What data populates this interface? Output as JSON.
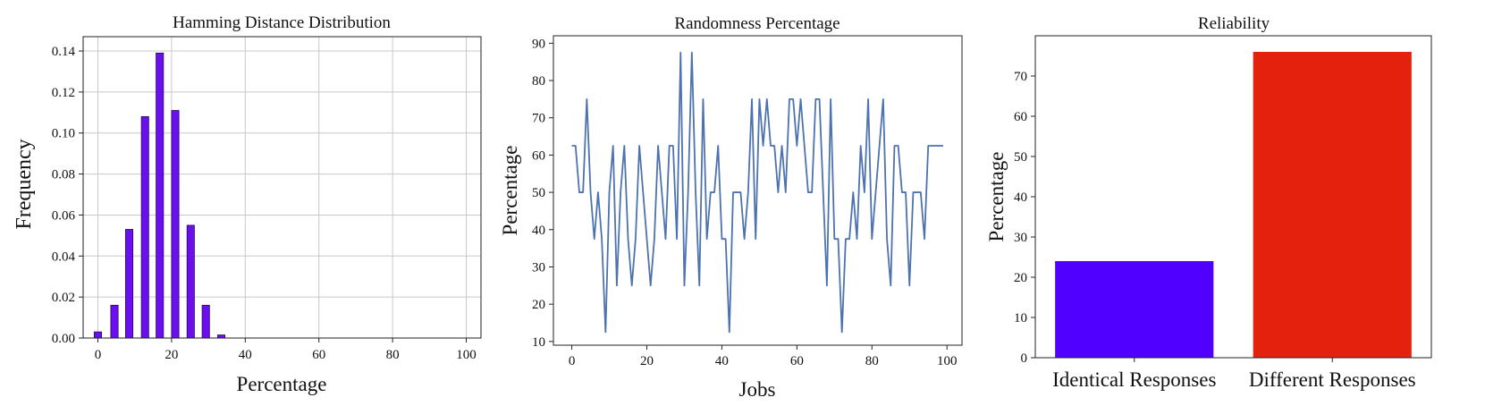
{
  "chart_data": [
    {
      "type": "bar",
      "title": "Hamming Distance Distribution",
      "xlabel": "Percentage",
      "ylabel": "Frequency",
      "xlim": [
        -4,
        104
      ],
      "ylim": [
        0,
        0.147
      ],
      "xticks": [
        0,
        20,
        40,
        60,
        80,
        100
      ],
      "yticks": [
        "0.00",
        "0.02",
        "0.04",
        "0.06",
        "0.08",
        "0.10",
        "0.12",
        "0.14"
      ],
      "grid": true,
      "bar_width": 2,
      "x": [
        0,
        4.5,
        8.5,
        12.8,
        16.8,
        21,
        25.2,
        29.3,
        33.5
      ],
      "values": [
        0.003,
        0.016,
        0.053,
        0.108,
        0.139,
        0.111,
        0.055,
        0.016,
        0.0015
      ],
      "color": "#6a0ff0",
      "edge_color": "#2a0a55"
    },
    {
      "type": "line",
      "title": "Randomness Percentage",
      "xlabel": "Jobs",
      "ylabel": "Percentage",
      "xlim": [
        -4.9,
        104
      ],
      "ylim": [
        9,
        92
      ],
      "xticks": [
        0,
        20,
        40,
        60,
        80,
        100
      ],
      "yticks": [
        10,
        20,
        30,
        40,
        50,
        60,
        70,
        80,
        90
      ],
      "grid": false,
      "color": "#4c72b0",
      "x": [
        0,
        1,
        2,
        3,
        4,
        5,
        6,
        7,
        8,
        9,
        10,
        11,
        12,
        13,
        14,
        15,
        16,
        17,
        18,
        19,
        20,
        21,
        22,
        23,
        24,
        25,
        26,
        27,
        28,
        29,
        30,
        31,
        32,
        33,
        34,
        35,
        36,
        37,
        38,
        39,
        40,
        41,
        42,
        43,
        44,
        45,
        46,
        47,
        48,
        49,
        50,
        51,
        52,
        53,
        54,
        55,
        56,
        57,
        58,
        59,
        60,
        61,
        62,
        63,
        64,
        65,
        66,
        67,
        68,
        69,
        70,
        71,
        72,
        73,
        74,
        75,
        76,
        77,
        78,
        79,
        80,
        81,
        82,
        83,
        84,
        85,
        86,
        87,
        88,
        89,
        90,
        91,
        92,
        93,
        94,
        95,
        96,
        97,
        98,
        99
      ],
      "y": [
        62.5,
        62.5,
        50,
        50,
        75,
        50,
        37.5,
        50,
        37.5,
        12.5,
        50,
        62.5,
        25,
        50,
        62.5,
        37.5,
        25,
        37.5,
        62.5,
        50,
        37.5,
        25,
        37.5,
        62.5,
        50,
        37.5,
        62.5,
        62.5,
        37.5,
        87.5,
        25,
        50,
        87.5,
        50,
        25,
        75,
        37.5,
        50,
        50,
        62.5,
        37.5,
        37.5,
        12.5,
        50,
        50,
        50,
        37.5,
        50,
        75,
        37.5,
        75,
        62.5,
        75,
        62.5,
        62.5,
        50,
        62.5,
        50,
        75,
        75,
        62.5,
        75,
        62.5,
        50,
        50,
        75,
        75,
        50,
        25,
        75,
        37.5,
        37.5,
        12.5,
        37.5,
        37.5,
        50,
        37.5,
        62.5,
        50,
        75,
        37.5,
        50,
        62.5,
        75,
        37.5,
        25,
        62.5,
        62.5,
        50,
        50,
        25,
        50,
        50,
        50,
        37.5,
        62.5,
        62.5,
        62.5,
        62.5,
        62.5
      ]
    },
    {
      "type": "bar",
      "title": "Reliability",
      "xlabel": "",
      "ylabel": "Percentage",
      "categories": [
        "Identical Responses",
        "Different Responses"
      ],
      "values": [
        24,
        76
      ],
      "colors": [
        "#5000ff",
        "#e4210d"
      ],
      "ylim": [
        0,
        80
      ],
      "yticks": [
        0,
        10,
        20,
        30,
        40,
        50,
        60,
        70
      ],
      "ytick_labels": [
        "0",
        "10",
        "20",
        "30",
        "40",
        "50",
        "60",
        "70"
      ],
      "grid": false
    }
  ]
}
